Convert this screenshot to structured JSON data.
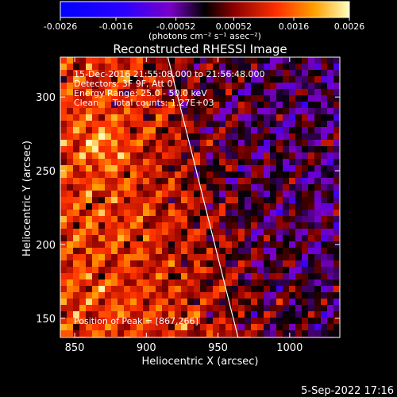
{
  "chart_data": {
    "type": "heatmap",
    "title": "Reconstructed RHESSI Image",
    "xlabel": "Heliocentric X (arcsec)",
    "ylabel": "Heliocentric Y (arcsec)",
    "xlim": [
      840,
      1035
    ],
    "ylim": [
      137,
      327
    ],
    "x_ticks": [
      850,
      900,
      950,
      1000
    ],
    "y_ticks": [
      150,
      200,
      250,
      300
    ],
    "colorbar": {
      "ticks": [
        "-0.0026",
        "-0.0016",
        "-0.00052",
        "0.00052",
        "0.0016",
        "0.0026"
      ],
      "range": [
        -0.0026,
        0.0026
      ],
      "unit_label": "(photons cm⁻² s⁻¹ asec⁻²)"
    },
    "annotations": {
      "time": "15-Dec-2016 21:55:08.000 to 21:56:48.000",
      "detectors": "Detectors: 3F 9F, Att 0",
      "energy": "Energy Range: 25.0 - 50.0 keV",
      "clean": "Clean     Total counts: 1.27E+03",
      "peak": "Position of Peak = [867,266]"
    },
    "limb_line": [
      [
        915,
        327
      ],
      [
        964,
        137
      ]
    ]
  },
  "footer_date": "5-Sep-2022 17:16"
}
